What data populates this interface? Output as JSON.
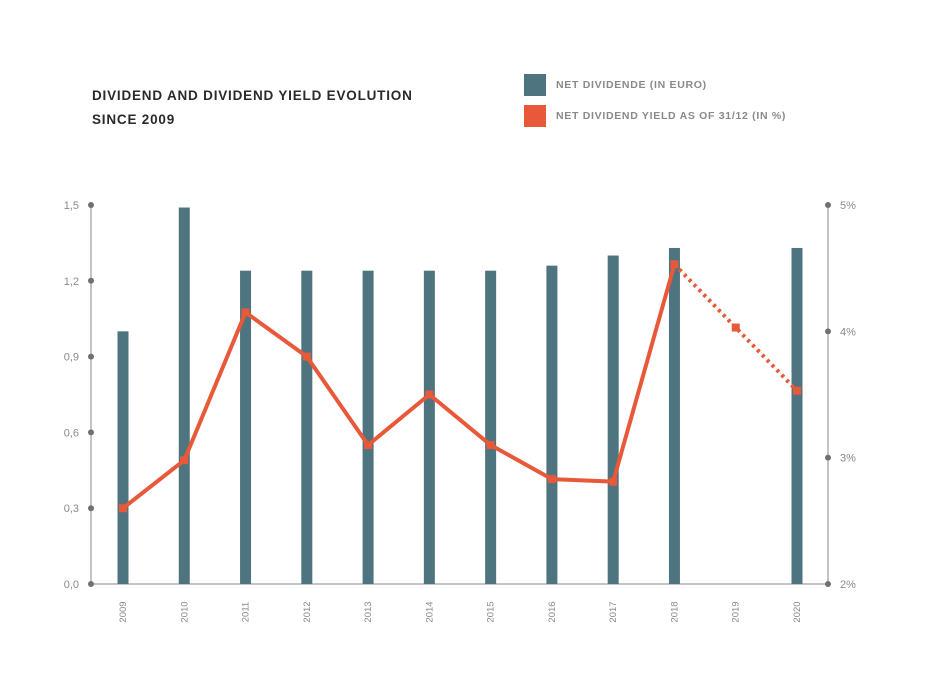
{
  "chart_data": {
    "type": "bar",
    "title_line1": "DIVIDEND AND DIVIDEND YIELD EVOLUTION",
    "title_line2": "SINCE 2009",
    "categories": [
      "2009",
      "2010",
      "2011",
      "2012",
      "2013",
      "2014",
      "2015",
      "2016",
      "2017",
      "2018",
      "2019",
      "2020"
    ],
    "series": [
      {
        "name": "NET DIVIDENDE (IN EURO)",
        "type": "bar",
        "axis": "left",
        "color": "#4e7480",
        "values": [
          1.0,
          1.49,
          1.24,
          1.24,
          1.24,
          1.24,
          1.24,
          1.26,
          1.3,
          1.33,
          null,
          1.33
        ]
      },
      {
        "name": "NET DIVIDEND YIELD AS OF 31/12 (IN %)",
        "type": "line",
        "axis": "right",
        "color": "#e8593a",
        "values": [
          2.6,
          2.98,
          4.15,
          3.8,
          3.1,
          3.5,
          3.1,
          2.83,
          2.81,
          4.53,
          4.03,
          3.53
        ],
        "dotted_from_index": 10
      }
    ],
    "ylim_left": [
      0,
      1.5
    ],
    "ylim_right": [
      2,
      5
    ],
    "yticks_left": [
      "0,0",
      "0,3",
      "0,6",
      "0,9",
      "1,2",
      "1,5"
    ],
    "yticks_right": [
      "2%",
      "3%",
      "4%",
      "5%"
    ],
    "legend_position": "top-right",
    "grid": false
  }
}
